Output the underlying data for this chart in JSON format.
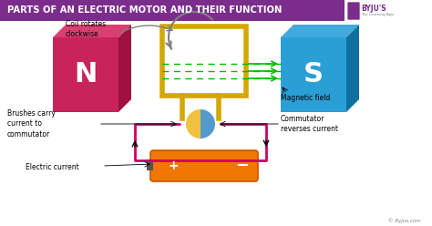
{
  "title": "PARTS OF AN ELECTRIC MOTOR AND THEIR FUNCTION",
  "title_bg": "#7B2D8B",
  "title_color": "#FFFFFF",
  "bg_color": "#FFFFFF",
  "n_magnet_color": "#C8235A",
  "n_magnet_top": "#D94070",
  "n_magnet_right": "#A01040",
  "s_magnet_color": "#2A9FD6",
  "s_magnet_top": "#40AADD",
  "s_magnet_right": "#1070A0",
  "coil_color": "#D4A800",
  "battery_color": "#F07800",
  "battery_edge": "#CC5500",
  "battery_cap": "#555555",
  "circuit_color": "#CC0066",
  "commutator_left_color": "#F0C040",
  "commutator_right_color": "#5599CC",
  "field_arrow_color": "#00BB00",
  "label_coil": "Coil rotates\nclockwise",
  "label_brushes": "Brushes carry\ncurrent to\ncommutator",
  "label_electric": "Electric current",
  "label_magnetic": "Magnetic field",
  "label_commutator": "Commutator\nreverses current",
  "watermark": "© Byjus.com"
}
